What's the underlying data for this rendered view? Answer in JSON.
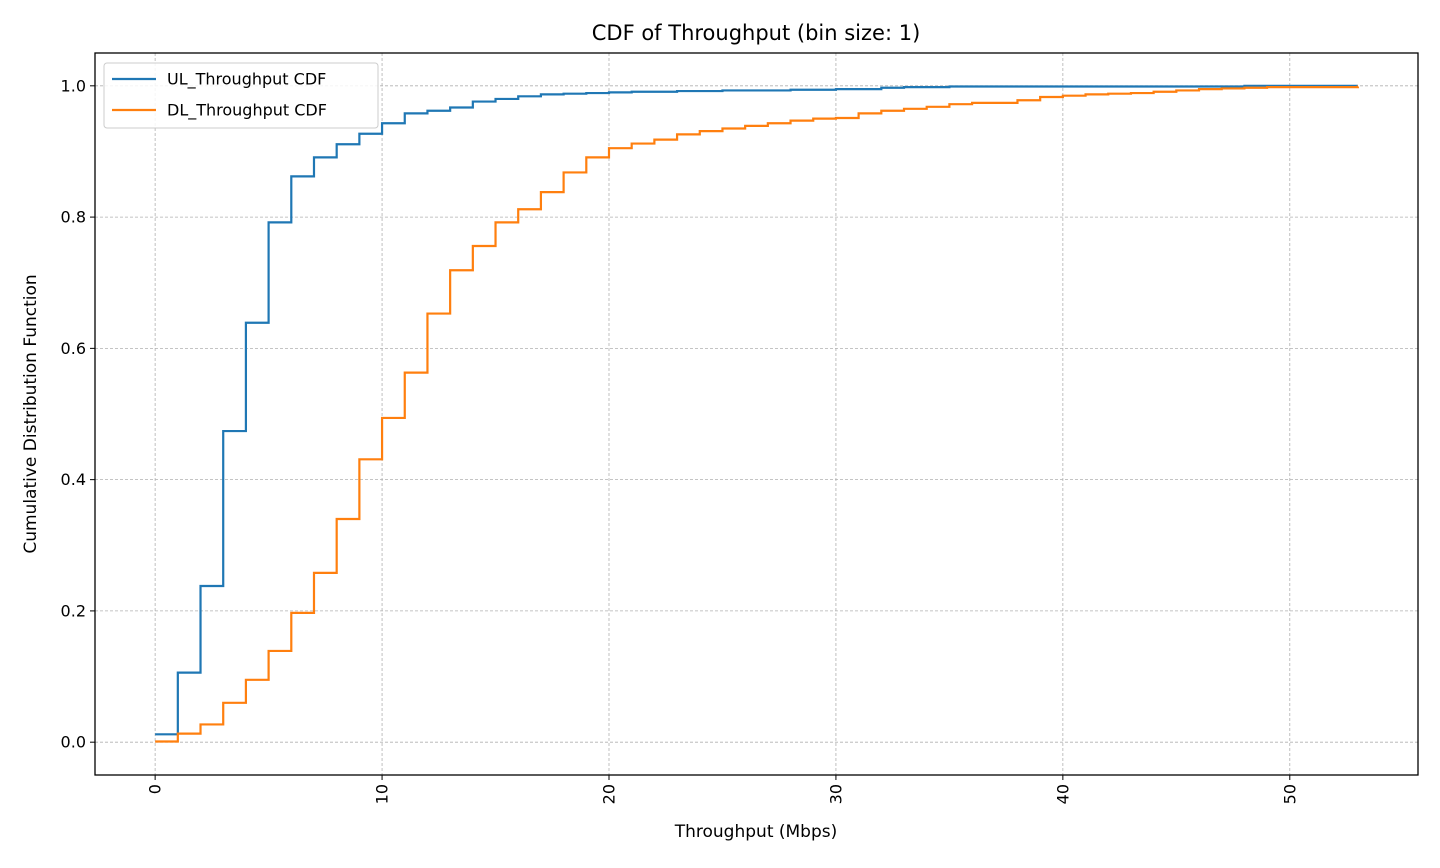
{
  "chart_data": {
    "type": "line",
    "step": "post",
    "title": "CDF of Throughput (bin size: 1)",
    "xlabel": "Throughput (Mbps)",
    "ylabel": "Cumulative Distribution Function",
    "xlim": [
      -2.65,
      55.65
    ],
    "ylim": [
      -0.05,
      1.05
    ],
    "xticks": [
      0,
      10,
      20,
      30,
      40,
      50
    ],
    "xtick_labels": [
      "0",
      "10",
      "20",
      "30",
      "40",
      "50"
    ],
    "xtick_rotation": 90,
    "yticks": [
      0.0,
      0.2,
      0.4,
      0.6,
      0.8,
      1.0
    ],
    "ytick_labels": [
      "0.0",
      "0.2",
      "0.4",
      "0.6",
      "0.8",
      "1.0"
    ],
    "grid": true,
    "legend_position": "top-left",
    "series": [
      {
        "name": "UL_Throughput CDF",
        "color": "#1f77b4",
        "x": [
          0,
          1,
          2,
          3,
          4,
          5,
          6,
          7,
          8,
          9,
          10,
          11,
          12,
          13,
          14,
          15,
          16,
          17,
          18,
          19,
          20,
          21,
          22,
          23,
          24,
          25,
          26,
          27,
          28,
          29,
          30,
          31,
          32,
          33,
          34,
          35,
          36,
          37,
          38,
          39,
          40,
          41,
          42,
          43,
          44,
          45,
          46,
          47,
          48,
          49,
          50,
          51,
          52,
          53
        ],
        "y": [
          0.012,
          0.106,
          0.238,
          0.474,
          0.639,
          0.792,
          0.862,
          0.891,
          0.911,
          0.927,
          0.943,
          0.958,
          0.962,
          0.967,
          0.976,
          0.98,
          0.984,
          0.987,
          0.988,
          0.989,
          0.99,
          0.991,
          0.991,
          0.992,
          0.992,
          0.993,
          0.993,
          0.993,
          0.994,
          0.994,
          0.995,
          0.995,
          0.997,
          0.998,
          0.998,
          0.999,
          0.999,
          0.999,
          0.999,
          0.999,
          0.999,
          0.999,
          0.999,
          0.999,
          0.999,
          0.999,
          0.999,
          0.999,
          1.0,
          1.0,
          1.0,
          1.0,
          1.0,
          1.0
        ]
      },
      {
        "name": "DL_Throughput CDF",
        "color": "#ff7f0e",
        "x": [
          0,
          1,
          2,
          3,
          4,
          5,
          6,
          7,
          8,
          9,
          10,
          11,
          12,
          13,
          14,
          15,
          16,
          17,
          18,
          19,
          20,
          21,
          22,
          23,
          24,
          25,
          26,
          27,
          28,
          29,
          30,
          31,
          32,
          33,
          34,
          35,
          36,
          37,
          38,
          39,
          40,
          41,
          42,
          43,
          44,
          45,
          46,
          47,
          48,
          49,
          50,
          51,
          52,
          53
        ],
        "y": [
          0.001,
          0.013,
          0.027,
          0.06,
          0.095,
          0.139,
          0.197,
          0.258,
          0.34,
          0.431,
          0.494,
          0.563,
          0.653,
          0.719,
          0.756,
          0.792,
          0.812,
          0.838,
          0.868,
          0.891,
          0.905,
          0.912,
          0.918,
          0.926,
          0.931,
          0.935,
          0.939,
          0.943,
          0.947,
          0.95,
          0.951,
          0.958,
          0.962,
          0.965,
          0.968,
          0.972,
          0.974,
          0.974,
          0.978,
          0.983,
          0.985,
          0.987,
          0.988,
          0.989,
          0.991,
          0.993,
          0.995,
          0.996,
          0.997,
          0.998,
          0.998,
          0.998,
          0.998,
          0.999
        ]
      }
    ]
  }
}
